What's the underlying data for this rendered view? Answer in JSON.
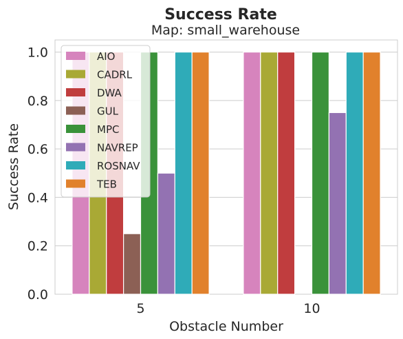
{
  "chart_data": {
    "type": "bar",
    "title": "Success Rate",
    "subtitle": "Map: small_warehouse",
    "xlabel": "Obstacle Number",
    "ylabel": "Success Rate",
    "categories": [
      "5",
      "10"
    ],
    "ylim": [
      0,
      1.05
    ],
    "yticks": [
      "0.0",
      "0.2",
      "0.4",
      "0.6",
      "0.8",
      "1.0"
    ],
    "grid": "y",
    "legend_position": "top-left",
    "series": [
      {
        "name": "AIO",
        "color": "#d684bd",
        "values": [
          1.0,
          1.0
        ]
      },
      {
        "name": "CADRL",
        "color": "#a9a935",
        "values": [
          1.0,
          1.0
        ]
      },
      {
        "name": "DWA",
        "color": "#c03d3e",
        "values": [
          1.0,
          1.0
        ]
      },
      {
        "name": "GUL",
        "color": "#8c6055",
        "values": [
          0.25,
          0.0
        ]
      },
      {
        "name": "MPC",
        "color": "#3a923a",
        "values": [
          1.0,
          1.0
        ]
      },
      {
        "name": "NAVREP",
        "color": "#9372b2",
        "values": [
          0.5,
          0.75
        ]
      },
      {
        "name": "ROSNAV",
        "color": "#2fabb8",
        "values": [
          1.0,
          1.0
        ]
      },
      {
        "name": "TEB",
        "color": "#e1812c",
        "values": [
          1.0,
          1.0
        ]
      }
    ]
  }
}
